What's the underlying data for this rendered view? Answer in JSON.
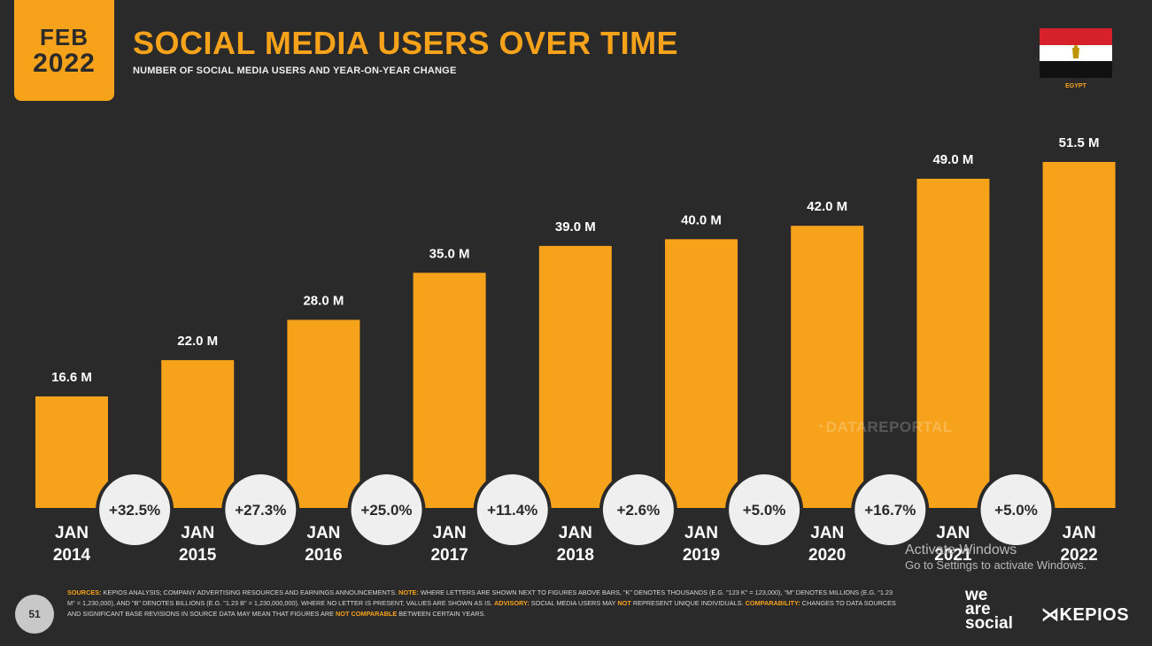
{
  "header": {
    "month": "FEB",
    "year": "2022",
    "title": "SOCIAL MEDIA USERS OVER TIME",
    "subtitle": "NUMBER OF SOCIAL MEDIA USERS AND YEAR-ON-YEAR CHANGE",
    "country": "EGYPT"
  },
  "chart_data": {
    "type": "bar",
    "title": "SOCIAL MEDIA USERS OVER TIME",
    "categories": [
      "JAN 2014",
      "JAN 2015",
      "JAN 2016",
      "JAN 2017",
      "JAN 2018",
      "JAN 2019",
      "JAN 2020",
      "JAN 2021",
      "JAN 2022"
    ],
    "category_lines": [
      [
        "JAN",
        "2014"
      ],
      [
        "JAN",
        "2015"
      ],
      [
        "JAN",
        "2016"
      ],
      [
        "JAN",
        "2017"
      ],
      [
        "JAN",
        "2018"
      ],
      [
        "JAN",
        "2019"
      ],
      [
        "JAN",
        "2020"
      ],
      [
        "JAN",
        "2021"
      ],
      [
        "JAN",
        "2022"
      ]
    ],
    "values": [
      16.6,
      22.0,
      28.0,
      35.0,
      39.0,
      40.0,
      42.0,
      49.0,
      51.5
    ],
    "value_labels": [
      "16.6 M",
      "22.0 M",
      "28.0 M",
      "35.0 M",
      "39.0 M",
      "40.0 M",
      "42.0 M",
      "49.0 M",
      "51.5 M"
    ],
    "yoy_change": [
      "+32.5%",
      "+27.3%",
      "+25.0%",
      "+11.4%",
      "+2.6%",
      "+5.0%",
      "+16.7%",
      "+5.0%"
    ],
    "unit": "M",
    "ylim": [
      0,
      51.5
    ],
    "grid": false,
    "colors": {
      "bar": "#f7a21b",
      "background": "#2a2a2a",
      "circle": "#efefef",
      "circle_text": "#2a2a2a"
    }
  },
  "watermark": "DATAREPORTAL",
  "windows_notice": {
    "title": "Activate Windows",
    "subtitle": "Go to Settings to activate Windows."
  },
  "footer": {
    "page_number": "51",
    "sources_label": "SOURCES:",
    "sources_text": "KEPIOS ANALYSIS; COMPANY ADVERTISING RESOURCES AND EARNINGS ANNOUNCEMENTS.",
    "note_label": "NOTE:",
    "note_text": "WHERE LETTERS ARE SHOWN NEXT TO FIGURES ABOVE BARS, \"K\" DENOTES THOUSANDS (E.G. \"123 K\" = 123,000), \"M\" DENOTES MILLIONS (E.G. \"1.23 M\" = 1,230,000), AND \"B\" DENOTES BILLIONS (E.G. \"1.23 B\" = 1,230,000,000). WHERE NO LETTER IS PRESENT, VALUES ARE SHOWN AS IS.",
    "advisory_label": "ADVISORY:",
    "advisory_text": "SOCIAL MEDIA USERS MAY",
    "advisory_not": "NOT",
    "advisory_text2": "REPRESENT UNIQUE INDIVIDUALS.",
    "comparability_label": "COMPARABILITY:",
    "comparability_text": "CHANGES TO DATA SOURCES AND SIGNIFICANT BASE REVISIONS IN SOURCE DATA MAY MEAN THAT FIGURES ARE",
    "comparability_not": "NOT COMPARABLE",
    "comparability_text2": "BETWEEN CERTAIN YEARS.",
    "brand_we": "we",
    "brand_are": "are",
    "brand_social": "social",
    "brand_kepios": "KEPIOS"
  }
}
